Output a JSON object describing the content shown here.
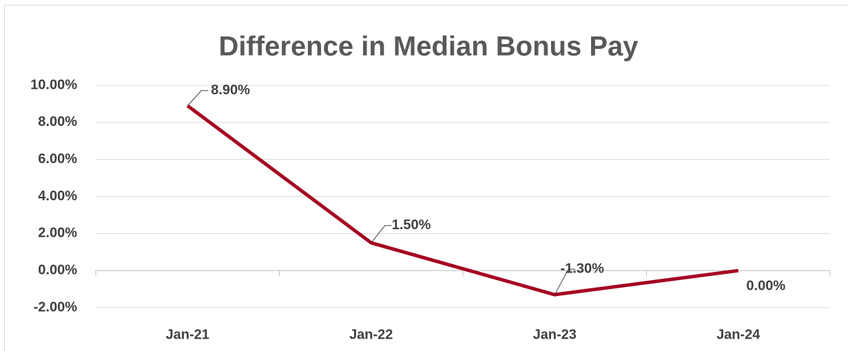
{
  "chart_data": {
    "type": "line",
    "title": "Difference in Median Bonus Pay",
    "categories": [
      "Jan-21",
      "Jan-22",
      "Jan-23",
      "Jan-24"
    ],
    "values": [
      8.9,
      1.5,
      -1.3,
      0
    ],
    "value_labels": [
      "8.90%",
      "1.50%",
      "-1.30%",
      "0.00%"
    ],
    "color": "#a50021",
    "ylim": [
      -2,
      10
    ],
    "yticks": [
      {
        "value": -2,
        "label": "-2.00%"
      },
      {
        "value": 0,
        "label": "0.00%"
      },
      {
        "value": 2,
        "label": "2.00%"
      },
      {
        "value": 4,
        "label": "4.00%"
      },
      {
        "value": 6,
        "label": "6.00%"
      },
      {
        "value": 8,
        "label": "8.00%"
      },
      {
        "value": 10,
        "label": "10.00%"
      }
    ],
    "grid": true
  }
}
